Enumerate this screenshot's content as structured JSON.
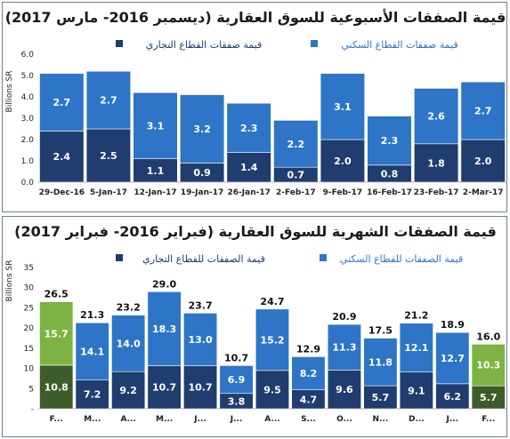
{
  "chart_data": [
    {
      "type": "bar",
      "stacked": true,
      "title": "قيمة الصفقات الأسبوعية للسوق العقارية (ديسمبر 2016- مارس 2017)",
      "ylabel": "Billions SR",
      "ylim": [
        0,
        6
      ],
      "yticks": [
        "0.0",
        "1.0",
        "2.0",
        "3.0",
        "4.0",
        "5.0",
        "6.0"
      ],
      "legend": [
        {
          "name": "قيمة صفقات القطاع التجاري",
          "color": "#1f3d6e"
        },
        {
          "name": "قيمة صفقات القطاع السكني",
          "color": "#2e75c7"
        }
      ],
      "categories": [
        "29-Dec-16",
        "5-Jan-17",
        "12-Jan-17",
        "19-Jan-17",
        "26-Jan-17",
        "2-Feb-17",
        "9-Feb-17",
        "16-Feb-17",
        "23-Feb-17",
        "2-Mar-17"
      ],
      "series": [
        {
          "name": "قيمة صفقات القطاع التجاري",
          "values": [
            2.4,
            2.5,
            1.1,
            0.9,
            1.4,
            0.7,
            2.0,
            0.8,
            1.8,
            2.0
          ]
        },
        {
          "name": "قيمة صفقات القطاع السكني",
          "values": [
            2.7,
            2.7,
            3.1,
            3.2,
            2.3,
            2.2,
            3.1,
            2.3,
            2.6,
            2.7
          ]
        }
      ],
      "value_labels_bottom": [
        "2.4",
        "2.5",
        "1.1",
        "0.9",
        "1.4",
        "0.7",
        "2.0",
        "0.8",
        "1.8",
        "2.0"
      ],
      "value_labels_top": [
        "2.7",
        "2.7",
        "3.1",
        "3.2",
        "2.3",
        "2.2",
        "3.1",
        "2.3",
        "2.6",
        "2.7"
      ],
      "colors": {
        "commercial": "#1f3d6e",
        "residential": "#2e75c7",
        "highlight_commercial": "#1f3d6e",
        "highlight_residential": "#2e75c7"
      },
      "highlight_index": 6
    },
    {
      "type": "bar",
      "stacked": true,
      "title": "قيمة الصفقات الشهرية للسوق العقارية (فبراير 2016- فبراير 2017)",
      "ylabel": "Billions SR",
      "ylim": [
        0,
        35
      ],
      "yticks": [
        "-",
        "5",
        "10",
        "15",
        "20",
        "25",
        "30",
        "35"
      ],
      "legend": [
        {
          "name": "قيمة الصفقات للقطاع التجاري",
          "color": "#1f3d6e"
        },
        {
          "name": "قيمة الصفقات للقطاع السكني",
          "color": "#2e75c7"
        }
      ],
      "categories": [
        "F...",
        "M...",
        "A...",
        "M...",
        "J...",
        "J...",
        "A...",
        "S...",
        "O...",
        "N...",
        "D...",
        "J...",
        "F..."
      ],
      "series": [
        {
          "name": "قيمة الصفقات للقطاع التجاري",
          "values": [
            10.8,
            7.2,
            9.2,
            10.7,
            10.7,
            3.8,
            9.5,
            4.7,
            9.6,
            5.7,
            9.1,
            6.2,
            5.7
          ]
        },
        {
          "name": "قيمة الصفقات للقطاع السكني",
          "values": [
            15.7,
            14.1,
            14.0,
            18.3,
            13.0,
            6.9,
            15.2,
            8.2,
            11.3,
            11.8,
            12.1,
            12.7,
            10.3
          ]
        }
      ],
      "totals": [
        "26.5",
        "21.3",
        "23.2",
        "29.0",
        "23.7",
        "10.7",
        "24.7",
        "12.9",
        "20.9",
        "17.5",
        "21.2",
        "18.9",
        "16.0"
      ],
      "value_labels_bottom": [
        "10.8",
        "7.2",
        "9.2",
        "10.7",
        "10.7",
        "3.8",
        "9.5",
        "4.7",
        "9.6",
        "5.7",
        "9.1",
        "6.2",
        "5.7"
      ],
      "value_labels_top": [
        "15.7",
        "14.1",
        "14.0",
        "18.3",
        "13.0",
        "6.9",
        "15.2",
        "8.2",
        "11.3",
        "11.8",
        "12.1",
        "12.7",
        "10.3"
      ],
      "colors": {
        "commercial": "#1f3d6e",
        "residential": "#2e75c7",
        "highlight_commercial": "#3d5c2a",
        "highlight_residential": "#7cb342"
      },
      "highlight_indices": [
        0,
        12
      ]
    }
  ]
}
